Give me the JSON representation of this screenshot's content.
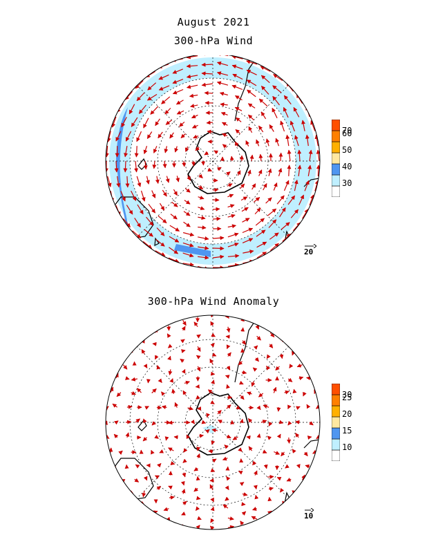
{
  "header": {
    "date": "August 2021",
    "title": "300-hPa Wind"
  },
  "anomaly": {
    "title": "300-hPa Wind Anomaly"
  },
  "colorbar_top": {
    "labels": [
      "30",
      "40",
      "50",
      "60",
      "70"
    ],
    "colors": [
      "#ffffff",
      "#bfefff",
      "#4f96f0",
      "#ffe8a0",
      "#ffb000",
      "#ff8000",
      "#ff5000"
    ]
  },
  "colorbar_bottom": {
    "labels": [
      "10",
      "15",
      "20",
      "25",
      "30"
    ],
    "colors": [
      "#ffffff",
      "#bfefff",
      "#4f96f0",
      "#ffe8a0",
      "#ffb000",
      "#ff8000",
      "#ff5000"
    ]
  },
  "reference_vectors": {
    "top": "20",
    "bottom": "10"
  },
  "colors": {
    "vector": "#cc0000",
    "coast": "#000000",
    "grid": "#000000",
    "band_light": "#bfefff",
    "band_dark": "#4f96f0"
  }
}
